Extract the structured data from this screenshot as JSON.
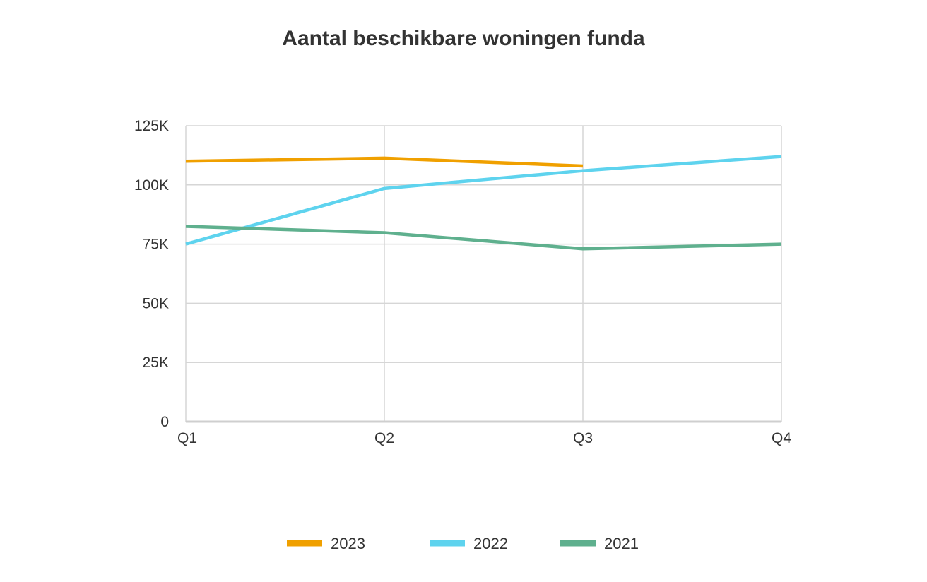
{
  "chart_data": {
    "type": "line",
    "title": "Aantal beschikbare woningen funda",
    "xlabel": "",
    "ylabel": "",
    "categories": [
      "Q1",
      "Q2",
      "Q3",
      "Q4"
    ],
    "y_ticks": [
      0,
      25000,
      50000,
      75000,
      100000,
      125000
    ],
    "y_tick_labels": [
      "0",
      "25K",
      "50K",
      "75K",
      "100K",
      "125K"
    ],
    "ylim": [
      0,
      125000
    ],
    "grid": true,
    "legend_position": "bottom",
    "series": [
      {
        "name": "2023",
        "color": "#F0A000",
        "values": [
          110000,
          111300,
          108000,
          null
        ]
      },
      {
        "name": "2022",
        "color": "#5ED3EE",
        "values": [
          75000,
          98500,
          106000,
          112000
        ]
      },
      {
        "name": "2021",
        "color": "#5FB08E",
        "values": [
          82500,
          79800,
          73000,
          75000
        ]
      }
    ]
  }
}
